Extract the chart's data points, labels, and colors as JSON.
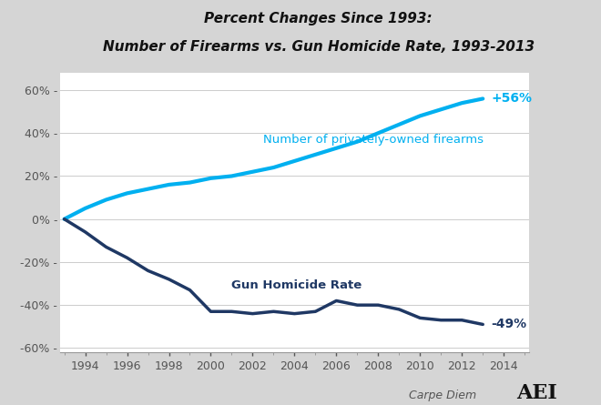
{
  "title_line1": "Percent Changes Since 1993:",
  "title_line2": "Number of Firearms vs. Gun Homicide Rate, 1993-2013",
  "background_color": "#d5d5d5",
  "plot_bg_color": "#ffffff",
  "firearms_color": "#00b0f0",
  "homicide_color": "#1f3864",
  "firearms_label": "Number of privately-owned firearms",
  "homicide_label": "Gun Homicide Rate",
  "end_label_firearms": "+56%",
  "end_label_homicide": "-49%",
  "ylim": [
    -62,
    68
  ],
  "yticks": [
    -60,
    -40,
    -20,
    0,
    20,
    40,
    60
  ],
  "xlim": [
    1992.8,
    2015.2
  ],
  "xticks": [
    1994,
    1996,
    1998,
    2000,
    2002,
    2004,
    2006,
    2008,
    2010,
    2012,
    2014
  ],
  "firearms_years": [
    1993,
    1994,
    1995,
    1996,
    1997,
    1998,
    1999,
    2000,
    2001,
    2002,
    2003,
    2004,
    2005,
    2006,
    2007,
    2008,
    2009,
    2010,
    2011,
    2012,
    2013
  ],
  "firearms_values": [
    0,
    5,
    9,
    12,
    14,
    16,
    17,
    19,
    20,
    22,
    24,
    27,
    30,
    33,
    36,
    40,
    44,
    48,
    51,
    54,
    56
  ],
  "homicide_years": [
    1993,
    1994,
    1995,
    1996,
    1997,
    1998,
    1999,
    2000,
    2001,
    2002,
    2003,
    2004,
    2005,
    2006,
    2007,
    2008,
    2009,
    2010,
    2011,
    2012,
    2013
  ],
  "homicide_values": [
    0,
    -6,
    -13,
    -18,
    -24,
    -28,
    -33,
    -43,
    -43,
    -44,
    -43,
    -44,
    -43,
    -38,
    -40,
    -40,
    -42,
    -46,
    -47,
    -47,
    -49
  ],
  "footer_text": "Carpe Diem",
  "footer_color": "#555555",
  "tick_color": "#555555",
  "grid_color": "#cccccc",
  "spine_color": "#999999"
}
